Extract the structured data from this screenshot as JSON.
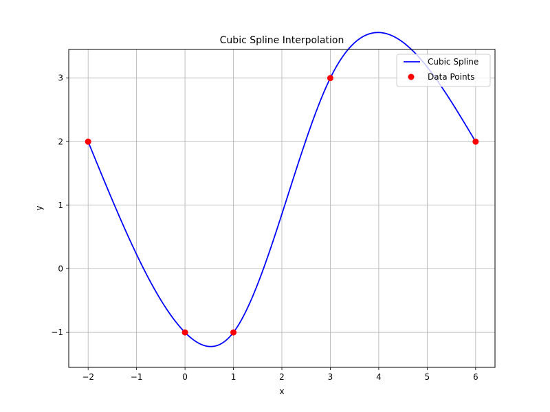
{
  "chart_data": {
    "type": "line",
    "title": "Cubic Spline Interpolation",
    "xlabel": "x",
    "ylabel": "y",
    "xlim": [
      -2.4,
      6.4
    ],
    "ylim": [
      -1.55,
      3.45
    ],
    "xticks": [
      -2,
      -1,
      0,
      1,
      2,
      3,
      4,
      5,
      6
    ],
    "xtick_labels": [
      "−2",
      "−1",
      "0",
      "1",
      "2",
      "3",
      "4",
      "5",
      "6"
    ],
    "yticks": [
      -1,
      0,
      1,
      2,
      3
    ],
    "ytick_labels": [
      "−1",
      "0",
      "1",
      "2",
      "3"
    ],
    "grid": true,
    "legend_position": "top-right",
    "series": [
      {
        "name": "Cubic Spline",
        "kind": "line",
        "color": "#0000ff",
        "knots": [
          {
            "x": -2,
            "y": 2
          },
          {
            "x": 0,
            "y": -1
          },
          {
            "x": 1,
            "y": -1
          },
          {
            "x": 3,
            "y": 3
          },
          {
            "x": 6,
            "y": 2
          }
        ],
        "boundary": "natural"
      },
      {
        "name": "Data Points",
        "kind": "scatter",
        "color": "#ff0000",
        "points": [
          {
            "x": -2,
            "y": 2
          },
          {
            "x": 0,
            "y": -1
          },
          {
            "x": 1,
            "y": -1
          },
          {
            "x": 3,
            "y": 3
          },
          {
            "x": 6,
            "y": 2
          }
        ]
      }
    ]
  }
}
